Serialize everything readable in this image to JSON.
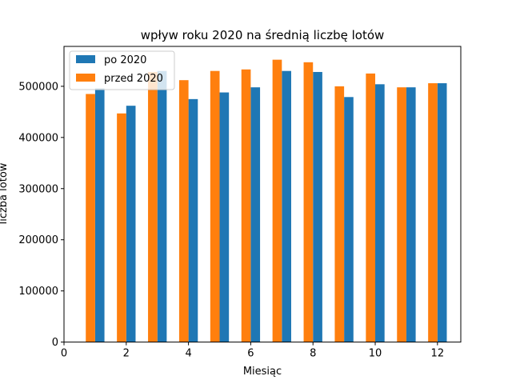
{
  "chart_data": {
    "type": "bar",
    "title": "wpływ roku 2020 na średnią liczbę lotów",
    "xlabel": "Miesiąc",
    "ylabel": "liczba lotów",
    "xlim": [
      0,
      12.75
    ],
    "ylim": [
      0,
      578000
    ],
    "xticks": [
      0,
      2,
      4,
      6,
      8,
      10,
      12
    ],
    "yticks": [
      0,
      100000,
      200000,
      300000,
      400000,
      500000
    ],
    "grid": false,
    "legend_position": "top-left",
    "categories": [
      1,
      2,
      3,
      4,
      5,
      6,
      7,
      8,
      9,
      10,
      11,
      12
    ],
    "series": [
      {
        "name": "po 2020",
        "color": "#1f77b4",
        "offset": 0.15,
        "values": [
          496000,
          462000,
          530000,
          475000,
          488000,
          498000,
          530000,
          528000,
          479000,
          504000,
          498000,
          506000
        ]
      },
      {
        "name": "przed 2020",
        "color": "#ff7f0e",
        "offset": -0.15,
        "values": [
          485000,
          447000,
          528000,
          512000,
          530000,
          533000,
          552000,
          547000,
          500000,
          525000,
          498000,
          506000
        ]
      }
    ],
    "bar_width": 0.3
  }
}
